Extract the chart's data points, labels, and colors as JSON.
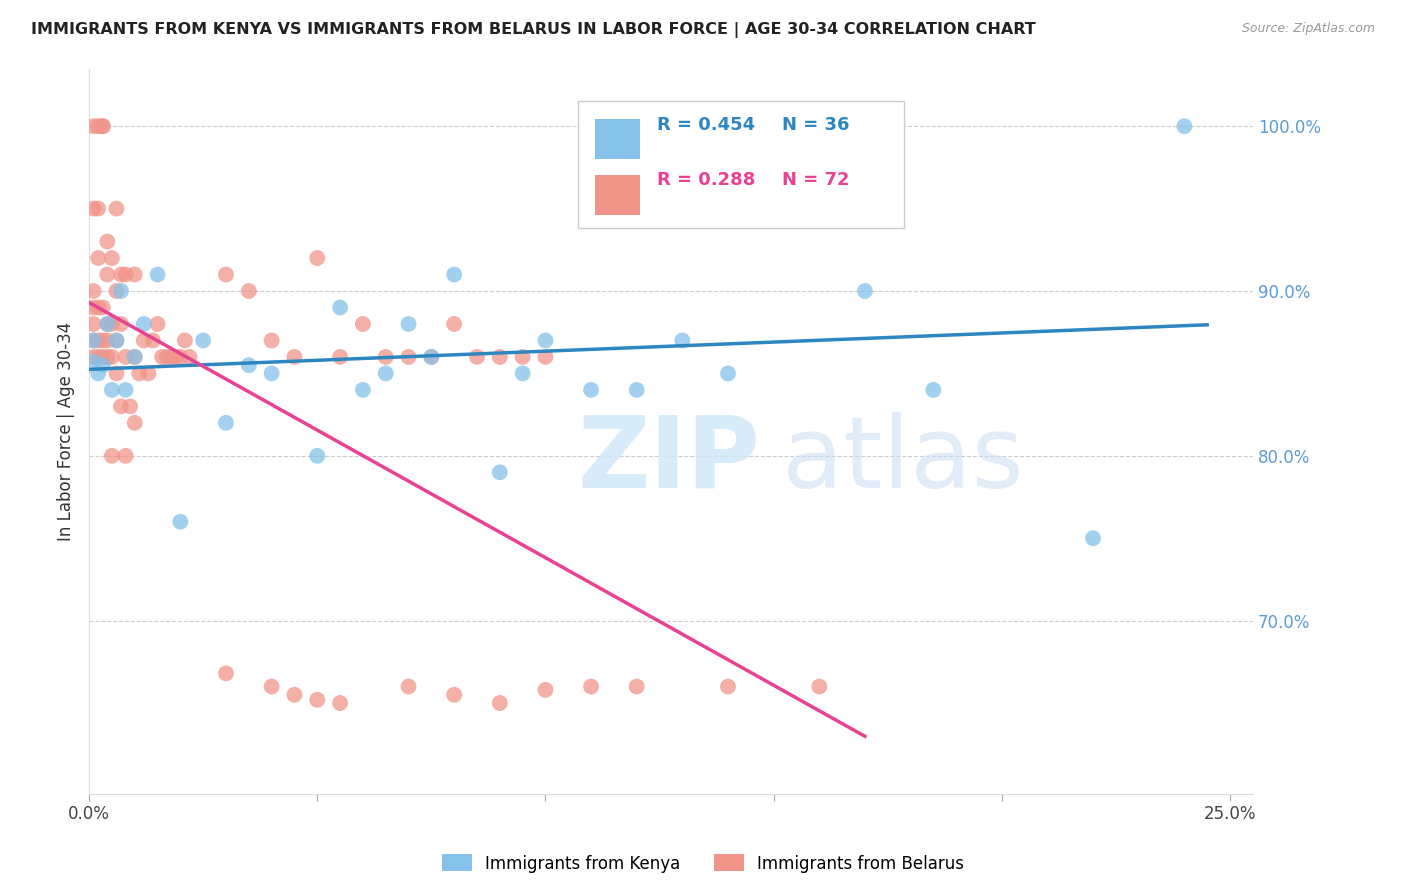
{
  "title": "IMMIGRANTS FROM KENYA VS IMMIGRANTS FROM BELARUS IN LABOR FORCE | AGE 30-34 CORRELATION CHART",
  "source": "Source: ZipAtlas.com",
  "ylabel": "In Labor Force | Age 30-34",
  "xlim": [
    0.0,
    0.255
  ],
  "ylim": [
    0.595,
    1.035
  ],
  "xtick_positions": [
    0.0,
    0.05,
    0.1,
    0.15,
    0.2,
    0.25
  ],
  "xtick_labels": [
    "0.0%",
    "",
    "",
    "",
    "",
    "25.0%"
  ],
  "ytick_vals_right": [
    1.0,
    0.9,
    0.8,
    0.7
  ],
  "ytick_labels_right": [
    "100.0%",
    "90.0%",
    "80.0%",
    "70.0%"
  ],
  "kenya_color": "#85c1e9",
  "belarus_color": "#f1948a",
  "kenya_line_color": "#2e86c1",
  "belarus_line_color": "#e84393",
  "kenya_R": "0.454",
  "kenya_N": "36",
  "belarus_R": "0.288",
  "belarus_N": "72",
  "kenya_x": [
    0.001,
    0.001,
    0.002,
    0.003,
    0.004,
    0.005,
    0.006,
    0.007,
    0.008,
    0.01,
    0.012,
    0.015,
    0.02,
    0.025,
    0.03,
    0.035,
    0.04,
    0.05,
    0.055,
    0.06,
    0.065,
    0.07,
    0.075,
    0.08,
    0.09,
    0.095,
    0.1,
    0.11,
    0.12,
    0.13,
    0.14,
    0.155,
    0.17,
    0.185,
    0.22,
    0.24
  ],
  "kenya_y": [
    0.857,
    0.87,
    0.85,
    0.855,
    0.88,
    0.84,
    0.87,
    0.9,
    0.84,
    0.86,
    0.88,
    0.91,
    0.76,
    0.87,
    0.82,
    0.855,
    0.85,
    0.8,
    0.89,
    0.84,
    0.85,
    0.88,
    0.86,
    0.91,
    0.79,
    0.85,
    0.87,
    0.84,
    0.84,
    0.87,
    0.85,
    0.96,
    0.9,
    0.84,
    0.75,
    1.0
  ],
  "belarus_x": [
    0.001,
    0.001,
    0.001,
    0.001,
    0.001,
    0.001,
    0.001,
    0.002,
    0.002,
    0.002,
    0.002,
    0.002,
    0.002,
    0.003,
    0.003,
    0.003,
    0.003,
    0.003,
    0.004,
    0.004,
    0.004,
    0.004,
    0.004,
    0.005,
    0.005,
    0.005,
    0.005,
    0.006,
    0.006,
    0.006,
    0.006,
    0.007,
    0.007,
    0.007,
    0.008,
    0.008,
    0.008,
    0.009,
    0.01,
    0.01,
    0.01,
    0.011,
    0.012,
    0.013,
    0.014,
    0.015,
    0.016,
    0.017,
    0.018,
    0.019,
    0.02,
    0.021,
    0.022,
    0.03,
    0.035,
    0.04,
    0.045,
    0.05,
    0.055,
    0.06,
    0.065,
    0.07,
    0.075,
    0.08,
    0.085,
    0.09,
    0.095,
    0.1,
    0.11,
    0.12,
    0.14,
    0.16
  ],
  "belarus_y": [
    0.86,
    0.87,
    0.88,
    0.89,
    0.9,
    0.95,
    1.0,
    0.86,
    0.87,
    0.89,
    0.92,
    0.95,
    1.0,
    0.86,
    0.87,
    0.89,
    1.0,
    1.0,
    0.86,
    0.87,
    0.88,
    0.91,
    0.93,
    0.8,
    0.86,
    0.88,
    0.92,
    0.85,
    0.87,
    0.9,
    0.95,
    0.83,
    0.88,
    0.91,
    0.8,
    0.86,
    0.91,
    0.83,
    0.82,
    0.86,
    0.91,
    0.85,
    0.87,
    0.85,
    0.87,
    0.88,
    0.86,
    0.86,
    0.86,
    0.86,
    0.86,
    0.87,
    0.86,
    0.91,
    0.9,
    0.87,
    0.86,
    0.92,
    0.86,
    0.88,
    0.86,
    0.86,
    0.86,
    0.88,
    0.86,
    0.86,
    0.86,
    0.86,
    0.66,
    0.66,
    0.66,
    0.66
  ],
  "belarus_low_x": [
    0.03,
    0.04,
    0.045,
    0.05,
    0.055,
    0.07,
    0.08,
    0.09,
    0.1
  ],
  "belarus_low_y": [
    0.668,
    0.66,
    0.655,
    0.652,
    0.65,
    0.66,
    0.655,
    0.65,
    0.658
  ]
}
